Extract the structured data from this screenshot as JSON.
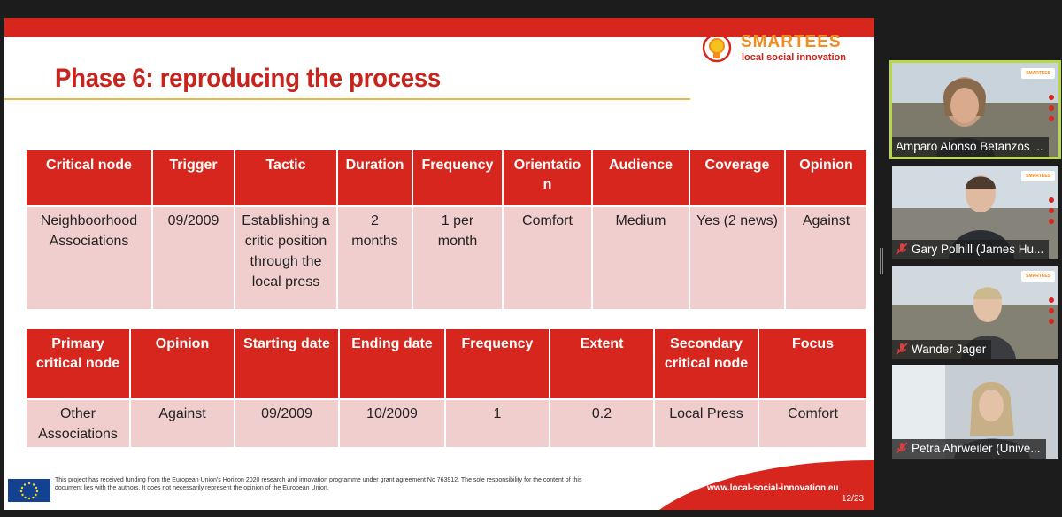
{
  "slide": {
    "title": "Phase 6: reproducing the process",
    "logo": {
      "name": "SMARTEES",
      "tagline": "local social innovation"
    },
    "table1": {
      "headers": [
        "Critical node",
        "Trigger",
        "Tactic",
        "Duration",
        "Frequency",
        "Orientatio\nn",
        "Audience",
        "Coverage",
        "Opinion"
      ],
      "row": [
        "Neighboorhood\nAssociations",
        "09/2009",
        "Establishing a\ncritic position\nthrough the\nlocal press",
        "2\nmonths",
        "1 per\nmonth",
        "Comfort",
        "Medium",
        "Yes (2 news)",
        "Against"
      ]
    },
    "table2": {
      "headers": [
        "Primary\ncritical node",
        "Opinion",
        "Starting date",
        "Ending date",
        "Frequency",
        "Extent",
        "Secondary\ncritical node",
        "Focus"
      ],
      "row": [
        "Other\nAssociations",
        "Against",
        "09/2009",
        "10/2009",
        "1",
        "0.2",
        "Local Press",
        "Comfort"
      ]
    },
    "footer": {
      "disclaimer": "This project has received funding from the European Union’s Horizon 2020 research and innovation programme under grant agreement No 763912. The sole responsibility for the content of this document lies with the authors. It does not necessarily represent the opinion of the European Union.",
      "url": "www.local-social-innovation.eu",
      "page": "12/23"
    }
  },
  "participants": [
    {
      "name": "Amparo Alonso Betanzos ...",
      "muted": false,
      "active": true
    },
    {
      "name": "Gary Polhill (James Hu...",
      "muted": true,
      "active": false
    },
    {
      "name": "Wander Jager",
      "muted": true,
      "active": false
    },
    {
      "name": "Petra Ahrweiler (Unive...",
      "muted": true,
      "active": false
    }
  ],
  "colors": {
    "accent": "#d7261d",
    "cell": "#f1cece",
    "brand_orange": "#f28c20",
    "active_speaker": "#b8d84a"
  }
}
